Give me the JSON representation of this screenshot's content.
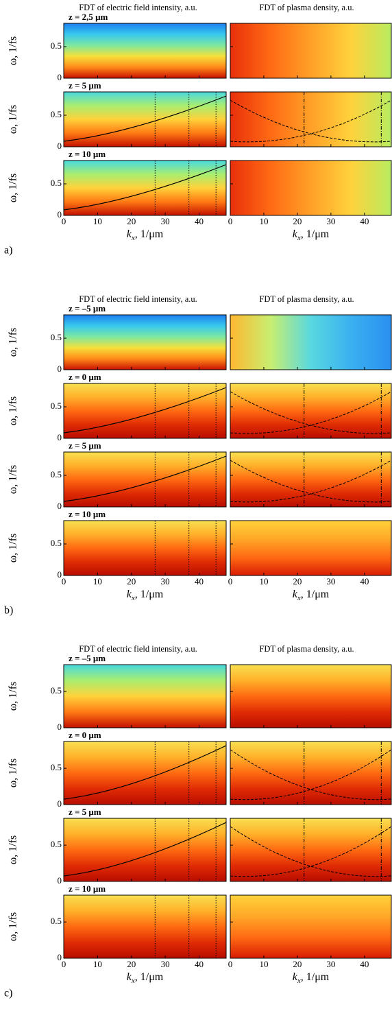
{
  "axes": {
    "xlim": [
      0,
      48
    ],
    "ylim": [
      0,
      0.87
    ],
    "xticks": [
      0,
      10,
      20,
      30,
      40
    ],
    "yticks": [
      0,
      0.5
    ]
  },
  "y_label": "ω, 1/fs",
  "x_label": {
    "symbol": "k",
    "subscript": "x",
    "unit": ", 1/μm"
  },
  "groups": [
    {
      "label": "a)",
      "column_titles": [
        "FDT of electric field intensity, a.u.",
        "FDT of plasma density, a.u."
      ],
      "rows": [
        "z = 2,5 μm",
        "z = 5 μm",
        "z = 10 μm"
      ]
    },
    {
      "label": "b)",
      "column_titles": [
        "FDT of electric field intensity, a.u.",
        "FDT of plasma density, a.u."
      ],
      "rows": [
        "z = –5 μm",
        "z = 0 μm",
        "z = 5 μm",
        "z = 10 μm"
      ]
    },
    {
      "label": "c)",
      "column_titles": [
        "FDT of electric field intensity, a.u.",
        "FDT of plasma density, a.u."
      ],
      "rows": [
        "z = –5 μm",
        "z = 0 μm",
        "z = 5 μm",
        "z = 10 μm"
      ]
    }
  ]
}
